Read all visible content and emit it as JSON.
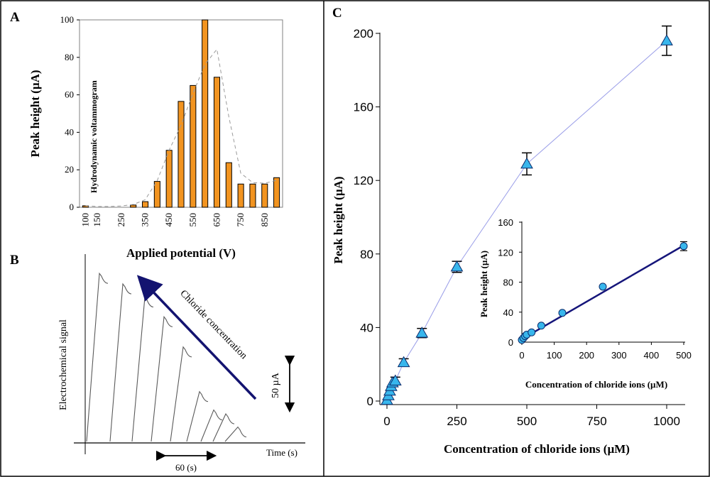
{
  "panel_labels": {
    "a": "A",
    "b": "B",
    "c": "C"
  },
  "chart_data": [
    {
      "id": "A",
      "type": "bar",
      "title": "",
      "annotation": "Hydrodynamic voltammogram",
      "xlabel": "Applied potential (V)",
      "ylabel": "Peak height (µA)",
      "ylim": [
        0,
        100
      ],
      "yticks": [
        0,
        20,
        40,
        60,
        80,
        100
      ],
      "categories": [
        "100",
        "150",
        "200",
        "250",
        "300",
        "350",
        "400",
        "450",
        "500",
        "550",
        "600",
        "650",
        "700",
        "750",
        "800",
        "850",
        "900"
      ],
      "xtick_labels": [
        "100",
        "150",
        "250",
        "350",
        "450",
        "550",
        "650",
        "750",
        "850"
      ],
      "values": [
        0.8,
        0,
        0,
        0,
        1.2,
        3,
        13.8,
        30.4,
        56.5,
        65,
        100,
        69.4,
        23.8,
        12.4,
        12.4,
        12.4,
        15.8
      ],
      "trend": [
        0.8,
        0.4,
        0.4,
        0.7,
        1.5,
        4,
        14.2,
        30.5,
        43.8,
        60.8,
        76.2,
        84.3,
        48.3,
        18.2,
        13.2,
        12.8,
        14.4
      ],
      "bar_color": "#F29420",
      "grid": false
    },
    {
      "id": "B",
      "type": "line",
      "title": "",
      "ylabel": "Electrochemical signal",
      "xlabel": "Time (s)",
      "arrow_label": "Chloride concentration",
      "scale_bar_current": "50 µA",
      "scale_bar_time": "60 (s)",
      "peak_heights_uA": [
        128,
        120,
        110,
        95,
        72,
        38,
        24,
        21,
        11
      ],
      "grid": false
    },
    {
      "id": "C",
      "type": "line",
      "title": "",
      "xlabel": "Concentration of chloride ions (µM)",
      "ylabel": "Peak height (µA)",
      "xlim": [
        -20,
        1050
      ],
      "ylim": [
        0,
        200
      ],
      "xticks": [
        0,
        250,
        500,
        750,
        1000
      ],
      "yticks": [
        0,
        40,
        80,
        120,
        160,
        200
      ],
      "x": [
        0,
        5,
        10,
        15,
        20,
        30,
        60,
        125,
        250,
        500,
        1000
      ],
      "y": [
        0.5,
        3,
        5.5,
        8,
        10,
        11,
        21,
        37,
        73,
        129,
        196
      ],
      "yerr": [
        0.5,
        0.6,
        0.8,
        1,
        1,
        2,
        2,
        2.5,
        3,
        6,
        8
      ],
      "marker_color": "#38B6EC",
      "line_color": "#9A9EE8",
      "grid": false,
      "inset": {
        "type": "line",
        "xlabel": "Concentration of chloride ions (µM)",
        "ylabel": "Peak height (µA)",
        "xlim": [
          0,
          500
        ],
        "ylim": [
          0,
          160
        ],
        "xticks": [
          0,
          100,
          200,
          300,
          400,
          500
        ],
        "yticks": [
          0,
          40,
          80,
          120,
          160
        ],
        "x": [
          0,
          5,
          10,
          15,
          30,
          60,
          125,
          250,
          500
        ],
        "y": [
          3,
          5.5,
          8,
          10,
          13,
          22,
          39,
          74,
          128
        ],
        "fit_line": {
          "x": [
            0,
            500
          ],
          "y": [
            4,
            129
          ]
        },
        "marker_color": "#38B6EC",
        "line_color": "#15157A"
      }
    }
  ]
}
